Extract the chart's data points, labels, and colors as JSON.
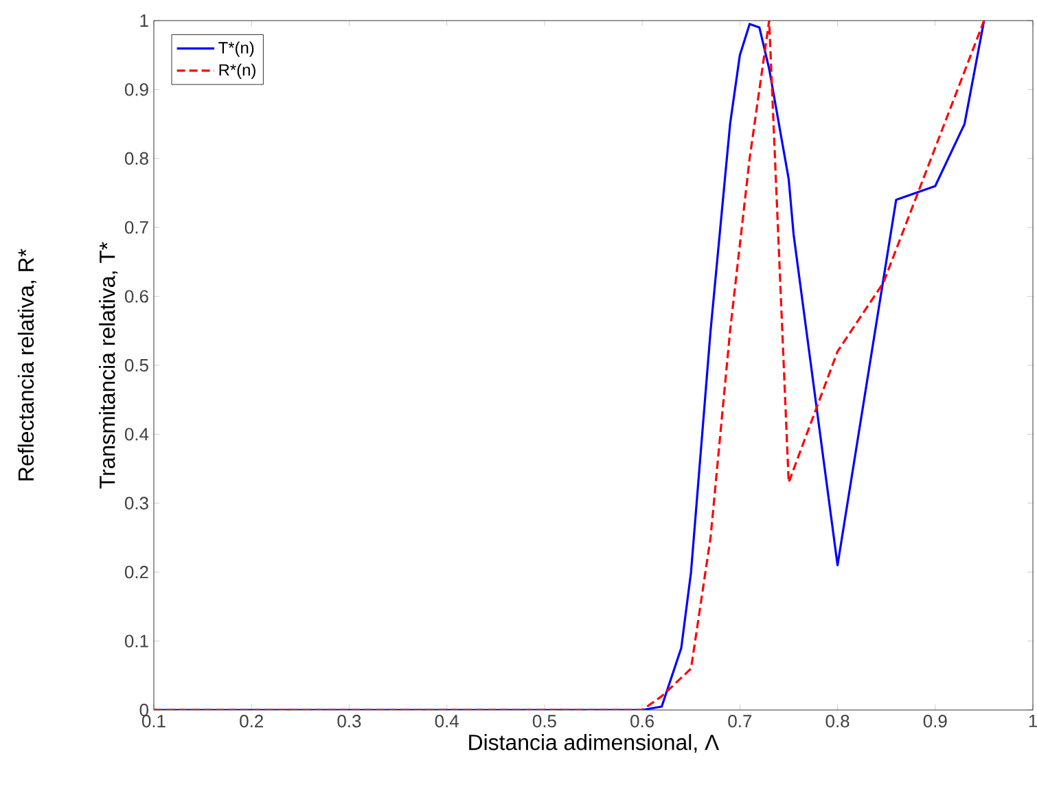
{
  "chart_data": {
    "type": "line",
    "xlabel": "Distancia adimensional, Λ",
    "ylabel": "Transmitancia relativa, T*",
    "annotations": [
      "Reflectancia relativa, R*"
    ],
    "xlim": [
      0.1,
      1
    ],
    "ylim": [
      0,
      1
    ],
    "xticks": [
      0.1,
      0.2,
      0.3,
      0.4,
      0.5,
      0.6,
      0.7,
      0.8,
      0.9,
      1
    ],
    "yticks": [
      0,
      0.1,
      0.2,
      0.3,
      0.4,
      0.5,
      0.6,
      0.7,
      0.8,
      0.9,
      1
    ],
    "grid": false,
    "legend": "top left",
    "marker": "none",
    "series": [
      {
        "name": "T*(n)",
        "color": "#0000ff",
        "line_style": "solid",
        "x": [
          0.1,
          0.6,
          0.62,
          0.64,
          0.65,
          0.67,
          0.69,
          0.7,
          0.71,
          0.72,
          0.73,
          0.75,
          0.755,
          0.8,
          0.86,
          0.9,
          0.93,
          0.95
        ],
        "values": [
          0,
          0,
          0.005,
          0.09,
          0.2,
          0.55,
          0.85,
          0.95,
          0.995,
          0.99,
          0.93,
          0.77,
          0.69,
          0.21,
          0.74,
          0.76,
          0.85,
          1
        ]
      },
      {
        "name": "R*(n)",
        "color": "#ff0000",
        "line_style": "dashed",
        "x": [
          0.1,
          0.6,
          0.62,
          0.65,
          0.67,
          0.69,
          0.71,
          0.72,
          0.73,
          0.75,
          0.8,
          0.847,
          0.95
        ],
        "values": [
          0,
          0,
          0.02,
          0.06,
          0.25,
          0.55,
          0.8,
          0.9,
          1,
          0.33,
          0.52,
          0.62,
          1
        ]
      }
    ]
  }
}
